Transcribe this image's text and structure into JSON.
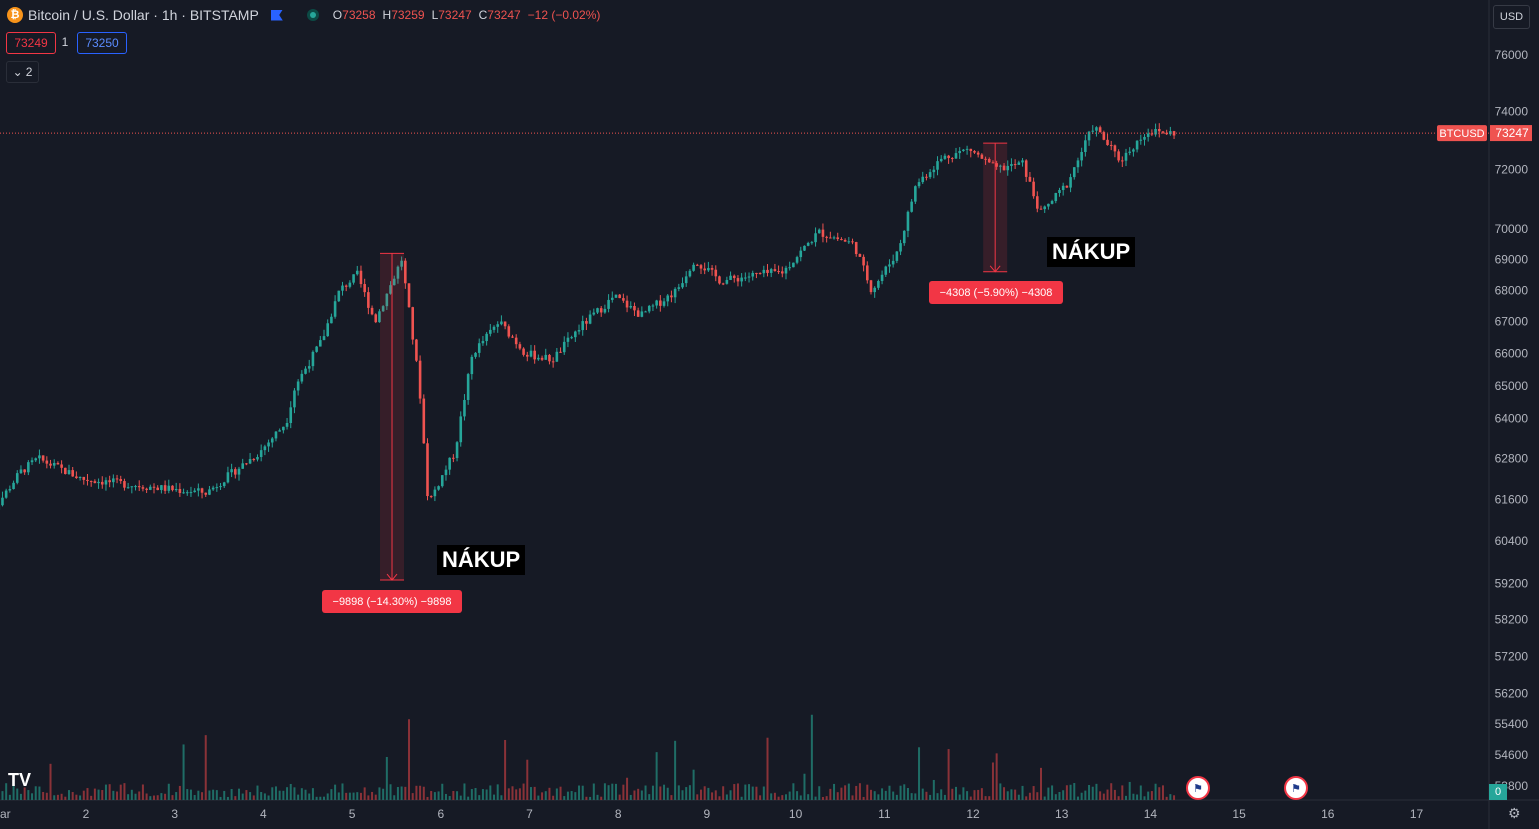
{
  "header": {
    "symbol_title": "Bitcoin / U.S. Dollar · 1h · BITSTAMP",
    "ohlc": {
      "o_label": "O",
      "o": "73258",
      "h_label": "H",
      "h": "73259",
      "l_label": "L",
      "l": "73247",
      "c_label": "C",
      "c": "73247",
      "change": "−12 (−0.02%)"
    },
    "bid": "73249",
    "spread": "1",
    "ask": "73250",
    "indicators_count": "2",
    "currency": "USD"
  },
  "annotations": {
    "nakup_1": "NÁKUP",
    "nakup_2": "NÁKUP",
    "measure_1": "−9898 (−14.30%) −9898",
    "measure_2": "−4308 (−5.90%) −4308"
  },
  "last_price": {
    "label": "BTCUSD",
    "value": "73247"
  },
  "footer": {
    "zero_badge": "0",
    "logo": "TV"
  },
  "colors": {
    "up": "#26a69a",
    "down": "#ef5350",
    "measure": "#f23645",
    "background": "#161a25"
  },
  "chart_data": {
    "type": "candlestick",
    "price_ticks": [
      76000,
      74000,
      72000,
      70000,
      69000,
      68000,
      67000,
      66000,
      65000,
      64000,
      62800,
      61600,
      60400,
      59200,
      58200,
      57200,
      56200,
      55400,
      54600,
      53800
    ],
    "price_axis_type": "log",
    "x_ticks": [
      "ar",
      "2",
      "3",
      "4",
      "5",
      "6",
      "7",
      "8",
      "9",
      "10",
      "11",
      "12",
      "13",
      "14",
      "15",
      "16",
      "17"
    ],
    "last": 73247,
    "key_prices": [
      {
        "day": 1.0,
        "price": 61300
      },
      {
        "day": 1.3,
        "price": 62400
      },
      {
        "day": 1.5,
        "price": 62800
      },
      {
        "day": 2.0,
        "price": 62200
      },
      {
        "day": 3.0,
        "price": 61900
      },
      {
        "day": 3.4,
        "price": 61800
      },
      {
        "day": 3.6,
        "price": 62200
      },
      {
        "day": 4.0,
        "price": 63000
      },
      {
        "day": 4.3,
        "price": 63900
      },
      {
        "day": 4.4,
        "price": 65000
      },
      {
        "day": 4.7,
        "price": 66400
      },
      {
        "day": 4.9,
        "price": 68000
      },
      {
        "day": 5.1,
        "price": 68500
      },
      {
        "day": 5.3,
        "price": 67000
      },
      {
        "day": 5.6,
        "price": 69000
      },
      {
        "day": 5.8,
        "price": 65000
      },
      {
        "day": 5.9,
        "price": 61500
      },
      {
        "day": 6.2,
        "price": 63000
      },
      {
        "day": 6.4,
        "price": 66000
      },
      {
        "day": 6.7,
        "price": 67000
      },
      {
        "day": 7.0,
        "price": 66000
      },
      {
        "day": 7.3,
        "price": 65800
      },
      {
        "day": 7.6,
        "price": 66800
      },
      {
        "day": 8.0,
        "price": 67800
      },
      {
        "day": 8.3,
        "price": 67200
      },
      {
        "day": 8.7,
        "price": 68000
      },
      {
        "day": 8.9,
        "price": 69000
      },
      {
        "day": 9.2,
        "price": 68300
      },
      {
        "day": 9.6,
        "price": 68500
      },
      {
        "day": 9.9,
        "price": 68600
      },
      {
        "day": 10.3,
        "price": 69900
      },
      {
        "day": 10.7,
        "price": 69500
      },
      {
        "day": 10.9,
        "price": 68000
      },
      {
        "day": 11.2,
        "price": 69300
      },
      {
        "day": 11.4,
        "price": 71500
      },
      {
        "day": 11.7,
        "price": 72400
      },
      {
        "day": 12.0,
        "price": 72700
      },
      {
        "day": 12.3,
        "price": 72000
      },
      {
        "day": 12.6,
        "price": 72200
      },
      {
        "day": 12.8,
        "price": 70500
      },
      {
        "day": 13.1,
        "price": 71500
      },
      {
        "day": 13.4,
        "price": 73500
      },
      {
        "day": 13.7,
        "price": 72300
      },
      {
        "day": 14.0,
        "price": 73300
      },
      {
        "day": 14.3,
        "price": 73247
      }
    ],
    "measurements": [
      {
        "from_day": 5.45,
        "from_price": 69200,
        "to_price": 59300,
        "change": -9898,
        "percent": -14.3
      },
      {
        "from_day": 12.25,
        "from_price": 72900,
        "to_price": 68600,
        "change": -4308,
        "percent": -5.9
      }
    ]
  }
}
